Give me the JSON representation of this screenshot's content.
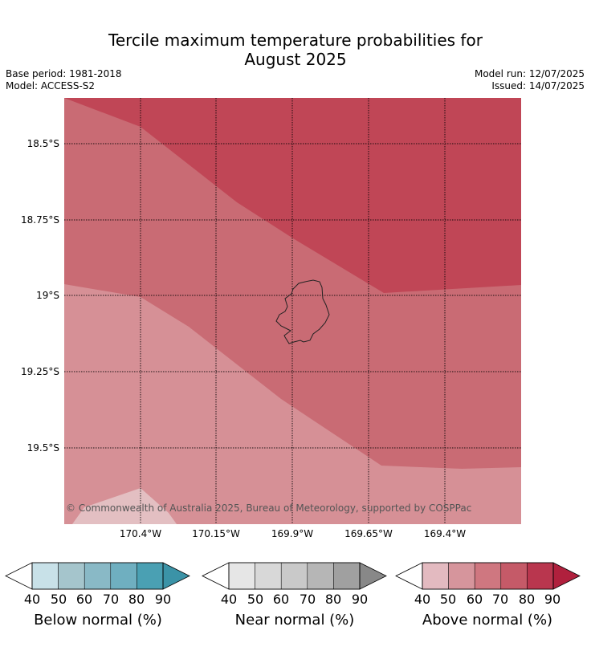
{
  "header": {
    "title_line1": "Tercile maximum temperature probabilities for",
    "title_line2": "August 2025",
    "base_period": "Base period: 1981-2018",
    "model": "Model: ACCESS-S2",
    "model_run": "Model run: 12/07/2025",
    "issued": "Issued: 14/07/2025"
  },
  "map": {
    "lat_labels": [
      "18.5°S",
      "18.75°S",
      "19°S",
      "19.25°S",
      "19.5°S"
    ],
    "lon_labels": [
      "170.4°W",
      "170.15°W",
      "169.9°W",
      "169.65°W",
      "169.4°W"
    ],
    "copyright": "© Commonwealth of Australia 2025, Bureau of Meteorology, supported by COSPPac",
    "colors": {
      "above_90": "#c04656",
      "above_70": "#c96b74",
      "above_60": "#d69096",
      "above_50": "#e3bfc2"
    }
  },
  "legends": [
    {
      "title": "Below normal (%)",
      "ticks": [
        "40",
        "50",
        "60",
        "70",
        "80",
        "90"
      ],
      "colors": [
        "#ffffff",
        "#c8e1e8",
        "#a5c5cc",
        "#89b9c6",
        "#6fafc0",
        "#4aa0b3",
        "#3b93a7"
      ]
    },
    {
      "title": "Near normal (%)",
      "ticks": [
        "40",
        "50",
        "60",
        "70",
        "80",
        "90"
      ],
      "colors": [
        "#ffffff",
        "#e6e6e6",
        "#d8d8d8",
        "#c9c9c9",
        "#b6b6b6",
        "#a0a0a0",
        "#888888"
      ]
    },
    {
      "title": "Above normal (%)",
      "ticks": [
        "40",
        "50",
        "60",
        "70",
        "80",
        "90"
      ],
      "colors": [
        "#ffffff",
        "#e3bac0",
        "#d6959c",
        "#cf7780",
        "#c55a68",
        "#b9364e",
        "#b0203d"
      ]
    }
  ]
}
